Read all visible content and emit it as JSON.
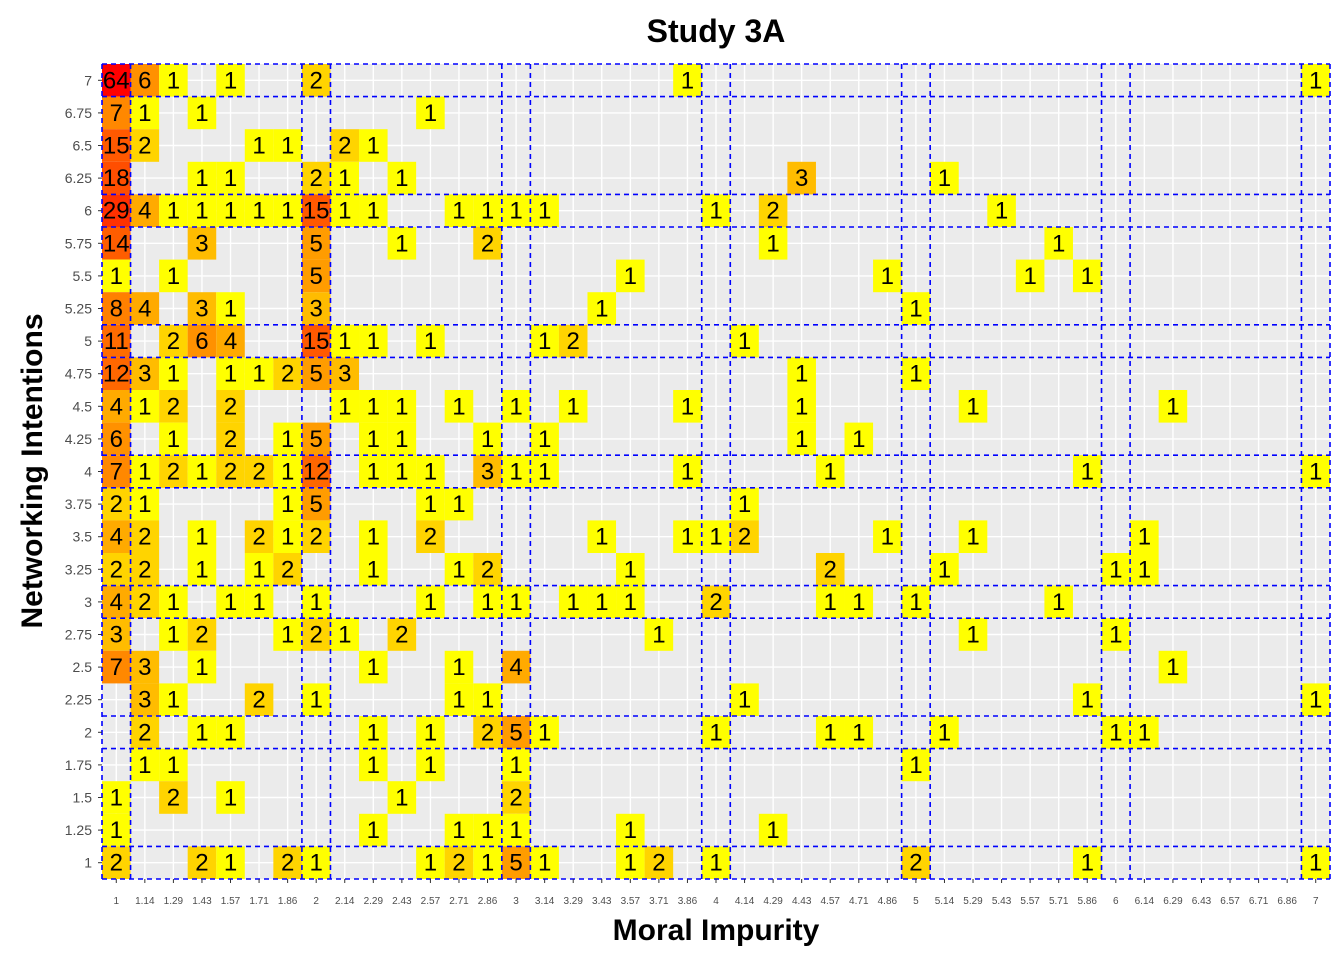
{
  "chart_data": {
    "type": "heatmap",
    "title": "Study 3A",
    "xlabel": "Moral Impurity",
    "ylabel": "Networking Intentions",
    "x_categories": [
      "1",
      "1.14",
      "1.29",
      "1.43",
      "1.57",
      "1.71",
      "1.86",
      "2",
      "2.14",
      "2.29",
      "2.43",
      "2.57",
      "2.71",
      "2.86",
      "3",
      "3.14",
      "3.29",
      "3.43",
      "3.57",
      "3.71",
      "3.86",
      "4",
      "4.14",
      "4.29",
      "4.43",
      "4.57",
      "4.71",
      "4.86",
      "5",
      "5.14",
      "5.29",
      "5.43",
      "5.57",
      "5.71",
      "5.86",
      "6",
      "6.14",
      "6.29",
      "6.43",
      "6.57",
      "6.71",
      "6.86",
      "7"
    ],
    "y_categories": [
      "1",
      "1.25",
      "1.5",
      "1.75",
      "2",
      "2.25",
      "2.5",
      "2.75",
      "3",
      "3.25",
      "3.5",
      "3.75",
      "4",
      "4.25",
      "4.5",
      "4.75",
      "5",
      "5.25",
      "5.5",
      "5.75",
      "6",
      "6.25",
      "6.5",
      "6.75",
      "7"
    ],
    "cells": [
      [
        "1",
        "7",
        64
      ],
      [
        "1.14",
        "7",
        6
      ],
      [
        "1.29",
        "7",
        1
      ],
      [
        "1.57",
        "7",
        1
      ],
      [
        "2",
        "7",
        2
      ],
      [
        "3.86",
        "7",
        1
      ],
      [
        "7",
        "7",
        1
      ],
      [
        "1",
        "6.75",
        7
      ],
      [
        "1.14",
        "6.75",
        1
      ],
      [
        "1.43",
        "6.75",
        1
      ],
      [
        "2.57",
        "6.75",
        1
      ],
      [
        "1",
        "6.5",
        15
      ],
      [
        "1.14",
        "6.5",
        2
      ],
      [
        "1.71",
        "6.5",
        1
      ],
      [
        "1.86",
        "6.5",
        1
      ],
      [
        "2.14",
        "6.5",
        2
      ],
      [
        "2.29",
        "6.5",
        1
      ],
      [
        "1",
        "6.25",
        18
      ],
      [
        "1.43",
        "6.25",
        1
      ],
      [
        "1.57",
        "6.25",
        1
      ],
      [
        "2",
        "6.25",
        2
      ],
      [
        "2.14",
        "6.25",
        1
      ],
      [
        "2.43",
        "6.25",
        1
      ],
      [
        "4.43",
        "6.25",
        3
      ],
      [
        "5.14",
        "6.25",
        1
      ],
      [
        "1",
        "6",
        29
      ],
      [
        "1.14",
        "6",
        4
      ],
      [
        "1.29",
        "6",
        1
      ],
      [
        "1.43",
        "6",
        1
      ],
      [
        "1.57",
        "6",
        1
      ],
      [
        "1.71",
        "6",
        1
      ],
      [
        "1.86",
        "6",
        1
      ],
      [
        "2",
        "6",
        15
      ],
      [
        "2.14",
        "6",
        1
      ],
      [
        "2.29",
        "6",
        1
      ],
      [
        "2.71",
        "6",
        1
      ],
      [
        "2.86",
        "6",
        1
      ],
      [
        "3",
        "6",
        1
      ],
      [
        "3.14",
        "6",
        1
      ],
      [
        "4",
        "6",
        1
      ],
      [
        "4.29",
        "6",
        2
      ],
      [
        "5.43",
        "6",
        1
      ],
      [
        "1",
        "5.75",
        14
      ],
      [
        "1.43",
        "5.75",
        3
      ],
      [
        "2",
        "5.75",
        5
      ],
      [
        "2.43",
        "5.75",
        1
      ],
      [
        "2.86",
        "5.75",
        2
      ],
      [
        "4.29",
        "5.75",
        1
      ],
      [
        "5.71",
        "5.75",
        1
      ],
      [
        "1",
        "5.5",
        1
      ],
      [
        "1.29",
        "5.5",
        1
      ],
      [
        "2",
        "5.5",
        5
      ],
      [
        "3.57",
        "5.5",
        1
      ],
      [
        "4.86",
        "5.5",
        1
      ],
      [
        "5.57",
        "5.5",
        1
      ],
      [
        "5.86",
        "5.5",
        1
      ],
      [
        "1",
        "5.25",
        8
      ],
      [
        "1.14",
        "5.25",
        4
      ],
      [
        "1.43",
        "5.25",
        3
      ],
      [
        "1.57",
        "5.25",
        1
      ],
      [
        "2",
        "5.25",
        3
      ],
      [
        "3.43",
        "5.25",
        1
      ],
      [
        "5",
        "5.25",
        1
      ],
      [
        "1",
        "5",
        11
      ],
      [
        "1.29",
        "5",
        2
      ],
      [
        "1.43",
        "5",
        6
      ],
      [
        "1.57",
        "5",
        4
      ],
      [
        "2",
        "5",
        15
      ],
      [
        "2.14",
        "5",
        1
      ],
      [
        "2.29",
        "5",
        1
      ],
      [
        "2.57",
        "5",
        1
      ],
      [
        "3.14",
        "5",
        1
      ],
      [
        "3.29",
        "5",
        2
      ],
      [
        "4.14",
        "5",
        1
      ],
      [
        "1",
        "4.75",
        12
      ],
      [
        "1.14",
        "4.75",
        3
      ],
      [
        "1.29",
        "4.75",
        1
      ],
      [
        "1.57",
        "4.75",
        1
      ],
      [
        "1.71",
        "4.75",
        1
      ],
      [
        "1.86",
        "4.75",
        2
      ],
      [
        "2",
        "4.75",
        5
      ],
      [
        "2.14",
        "4.75",
        3
      ],
      [
        "4.43",
        "4.75",
        1
      ],
      [
        "5",
        "4.75",
        1
      ],
      [
        "1",
        "4.5",
        4
      ],
      [
        "1.14",
        "4.5",
        1
      ],
      [
        "1.29",
        "4.5",
        2
      ],
      [
        "1.57",
        "4.5",
        2
      ],
      [
        "2.14",
        "4.5",
        1
      ],
      [
        "2.29",
        "4.5",
        1
      ],
      [
        "2.43",
        "4.5",
        1
      ],
      [
        "2.71",
        "4.5",
        1
      ],
      [
        "3",
        "4.5",
        1
      ],
      [
        "3.29",
        "4.5",
        1
      ],
      [
        "3.86",
        "4.5",
        1
      ],
      [
        "4.43",
        "4.5",
        1
      ],
      [
        "5.29",
        "4.5",
        1
      ],
      [
        "6.29",
        "4.5",
        1
      ],
      [
        "1",
        "4.25",
        6
      ],
      [
        "1.29",
        "4.25",
        1
      ],
      [
        "1.57",
        "4.25",
        2
      ],
      [
        "1.86",
        "4.25",
        1
      ],
      [
        "2",
        "4.25",
        5
      ],
      [
        "2.29",
        "4.25",
        1
      ],
      [
        "2.43",
        "4.25",
        1
      ],
      [
        "2.86",
        "4.25",
        1
      ],
      [
        "3.14",
        "4.25",
        1
      ],
      [
        "4.43",
        "4.25",
        1
      ],
      [
        "4.71",
        "4.25",
        1
      ],
      [
        "1",
        "4",
        7
      ],
      [
        "1.14",
        "4",
        1
      ],
      [
        "1.29",
        "4",
        2
      ],
      [
        "1.43",
        "4",
        1
      ],
      [
        "1.57",
        "4",
        2
      ],
      [
        "1.71",
        "4",
        2
      ],
      [
        "1.86",
        "4",
        1
      ],
      [
        "2",
        "4",
        12
      ],
      [
        "2.29",
        "4",
        1
      ],
      [
        "2.43",
        "4",
        1
      ],
      [
        "2.57",
        "4",
        1
      ],
      [
        "2.86",
        "4",
        3
      ],
      [
        "3",
        "4",
        1
      ],
      [
        "3.14",
        "4",
        1
      ],
      [
        "3.86",
        "4",
        1
      ],
      [
        "4.57",
        "4",
        1
      ],
      [
        "5.86",
        "4",
        1
      ],
      [
        "7",
        "4",
        1
      ],
      [
        "1",
        "3.75",
        2
      ],
      [
        "1.14",
        "3.75",
        1
      ],
      [
        "1.86",
        "3.75",
        1
      ],
      [
        "2",
        "3.75",
        5
      ],
      [
        "2.57",
        "3.75",
        1
      ],
      [
        "2.71",
        "3.75",
        1
      ],
      [
        "4.14",
        "3.75",
        1
      ],
      [
        "1",
        "3.5",
        4
      ],
      [
        "1.14",
        "3.5",
        2
      ],
      [
        "1.43",
        "3.5",
        1
      ],
      [
        "1.71",
        "3.5",
        2
      ],
      [
        "1.86",
        "3.5",
        1
      ],
      [
        "2",
        "3.5",
        2
      ],
      [
        "2.29",
        "3.5",
        1
      ],
      [
        "2.57",
        "3.5",
        2
      ],
      [
        "3.43",
        "3.5",
        1
      ],
      [
        "3.86",
        "3.5",
        1
      ],
      [
        "4",
        "3.5",
        1
      ],
      [
        "4.14",
        "3.5",
        2
      ],
      [
        "4.86",
        "3.5",
        1
      ],
      [
        "5.29",
        "3.5",
        1
      ],
      [
        "6.14",
        "3.5",
        1
      ],
      [
        "1",
        "3.25",
        2
      ],
      [
        "1.14",
        "3.25",
        2
      ],
      [
        "1.43",
        "3.25",
        1
      ],
      [
        "1.71",
        "3.25",
        1
      ],
      [
        "1.86",
        "3.25",
        2
      ],
      [
        "2.29",
        "3.25",
        1
      ],
      [
        "2.71",
        "3.25",
        1
      ],
      [
        "2.86",
        "3.25",
        2
      ],
      [
        "3.57",
        "3.25",
        1
      ],
      [
        "4.57",
        "3.25",
        2
      ],
      [
        "5.14",
        "3.25",
        1
      ],
      [
        "6",
        "3.25",
        1
      ],
      [
        "6.14",
        "3.25",
        1
      ],
      [
        "1",
        "3",
        4
      ],
      [
        "1.14",
        "3",
        2
      ],
      [
        "1.29",
        "3",
        1
      ],
      [
        "1.57",
        "3",
        1
      ],
      [
        "1.71",
        "3",
        1
      ],
      [
        "2",
        "3",
        1
      ],
      [
        "2.57",
        "3",
        1
      ],
      [
        "2.86",
        "3",
        1
      ],
      [
        "3",
        "3",
        1
      ],
      [
        "3.29",
        "3",
        1
      ],
      [
        "3.43",
        "3",
        1
      ],
      [
        "3.57",
        "3",
        1
      ],
      [
        "4",
        "3",
        2
      ],
      [
        "4.57",
        "3",
        1
      ],
      [
        "4.71",
        "3",
        1
      ],
      [
        "5",
        "3",
        1
      ],
      [
        "5.71",
        "3",
        1
      ],
      [
        "1",
        "2.75",
        3
      ],
      [
        "1.29",
        "2.75",
        1
      ],
      [
        "1.43",
        "2.75",
        2
      ],
      [
        "1.86",
        "2.75",
        1
      ],
      [
        "2",
        "2.75",
        2
      ],
      [
        "2.14",
        "2.75",
        1
      ],
      [
        "2.43",
        "2.75",
        2
      ],
      [
        "3.71",
        "2.75",
        1
      ],
      [
        "5.29",
        "2.75",
        1
      ],
      [
        "6",
        "2.75",
        1
      ],
      [
        "1",
        "2.5",
        7
      ],
      [
        "1.14",
        "2.5",
        3
      ],
      [
        "1.43",
        "2.5",
        1
      ],
      [
        "2.29",
        "2.5",
        1
      ],
      [
        "2.71",
        "2.5",
        1
      ],
      [
        "3",
        "2.5",
        4
      ],
      [
        "6.29",
        "2.5",
        1
      ],
      [
        "1.14",
        "2.25",
        3
      ],
      [
        "1.29",
        "2.25",
        1
      ],
      [
        "1.71",
        "2.25",
        2
      ],
      [
        "2",
        "2.25",
        1
      ],
      [
        "2.71",
        "2.25",
        1
      ],
      [
        "2.86",
        "2.25",
        1
      ],
      [
        "4.14",
        "2.25",
        1
      ],
      [
        "5.86",
        "2.25",
        1
      ],
      [
        "7",
        "2.25",
        1
      ],
      [
        "1.14",
        "2",
        2
      ],
      [
        "1.43",
        "2",
        1
      ],
      [
        "1.57",
        "2",
        1
      ],
      [
        "2.29",
        "2",
        1
      ],
      [
        "2.57",
        "2",
        1
      ],
      [
        "2.86",
        "2",
        2
      ],
      [
        "3",
        "2",
        5
      ],
      [
        "3.14",
        "2",
        1
      ],
      [
        "4",
        "2",
        1
      ],
      [
        "4.57",
        "2",
        1
      ],
      [
        "4.71",
        "2",
        1
      ],
      [
        "5.14",
        "2",
        1
      ],
      [
        "6",
        "2",
        1
      ],
      [
        "6.14",
        "2",
        1
      ],
      [
        "1.14",
        "1.75",
        1
      ],
      [
        "1.29",
        "1.75",
        1
      ],
      [
        "2.29",
        "1.75",
        1
      ],
      [
        "2.57",
        "1.75",
        1
      ],
      [
        "3",
        "1.75",
        1
      ],
      [
        "5",
        "1.75",
        1
      ],
      [
        "1",
        "1.5",
        1
      ],
      [
        "1.29",
        "1.5",
        2
      ],
      [
        "1.57",
        "1.5",
        1
      ],
      [
        "2.43",
        "1.5",
        1
      ],
      [
        "3",
        "1.5",
        2
      ],
      [
        "1",
        "1.25",
        1
      ],
      [
        "2.29",
        "1.25",
        1
      ],
      [
        "2.71",
        "1.25",
        1
      ],
      [
        "2.86",
        "1.25",
        1
      ],
      [
        "3",
        "1.25",
        1
      ],
      [
        "3.57",
        "1.25",
        1
      ],
      [
        "4.29",
        "1.25",
        1
      ],
      [
        "1",
        "1",
        2
      ],
      [
        "1.43",
        "1",
        2
      ],
      [
        "1.57",
        "1",
        1
      ],
      [
        "1.86",
        "1",
        2
      ],
      [
        "2",
        "1",
        1
      ],
      [
        "2.57",
        "1",
        1
      ],
      [
        "2.71",
        "1",
        2
      ],
      [
        "2.86",
        "1",
        1
      ],
      [
        "3",
        "1",
        5
      ],
      [
        "3.14",
        "1",
        1
      ],
      [
        "3.57",
        "1",
        1
      ],
      [
        "3.71",
        "1",
        2
      ],
      [
        "4",
        "1",
        1
      ],
      [
        "5",
        "1",
        2
      ],
      [
        "5.86",
        "1",
        1
      ],
      [
        "7",
        "1",
        1
      ]
    ],
    "color_scale": {
      "low": "#ffff00",
      "high": "#ff0000"
    },
    "background_color": "#ebebeb",
    "reference_line_color": "#0000ff",
    "reference_lines_x": [
      "1",
      "2",
      "3",
      "4",
      "5",
      "6",
      "7"
    ],
    "reference_lines_y": [
      "1",
      "2",
      "3",
      "4",
      "5",
      "6",
      "7"
    ],
    "grid": true,
    "legend": "none"
  }
}
